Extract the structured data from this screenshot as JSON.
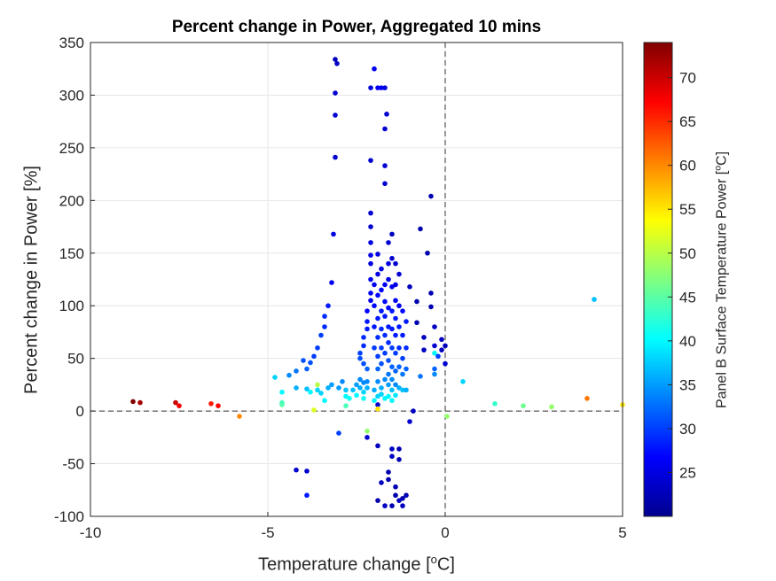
{
  "chart_data": {
    "type": "scatter",
    "title": "Percent change in Power, Aggregated 10 mins",
    "xlabel": "Temperature change [",
    "xlabel_sup": "o",
    "xlabel_suffix": "C]",
    "ylabel": "Percent change in Power [%]",
    "xlim": [
      -10,
      5
    ],
    "ylim": [
      -100,
      350
    ],
    "xticks": [
      -10,
      -5,
      0,
      5
    ],
    "yticks": [
      -100,
      -50,
      0,
      50,
      100,
      150,
      200,
      250,
      300,
      350
    ],
    "grid": true,
    "reference_lines": {
      "x": 0,
      "y": 0,
      "style": "dashed"
    },
    "colorbar": {
      "label": "Panel B Surface Temperature Power [",
      "label_sup": "o",
      "label_suffix": "C]",
      "range": [
        20,
        74
      ],
      "ticks": [
        25,
        30,
        35,
        40,
        45,
        50,
        55,
        60,
        65,
        70
      ],
      "colormap": "jet"
    },
    "points": [
      [
        -8.8,
        9,
        74
      ],
      [
        -8.6,
        8,
        72
      ],
      [
        -7.6,
        8,
        70
      ],
      [
        -7.5,
        5,
        68
      ],
      [
        -6.6,
        7,
        66
      ],
      [
        -6.4,
        5,
        67
      ],
      [
        -5.8,
        -5,
        60
      ],
      [
        -4.8,
        32,
        38
      ],
      [
        -4.6,
        6,
        45
      ],
      [
        -4.6,
        8,
        44
      ],
      [
        -4.6,
        18,
        40
      ],
      [
        -4.4,
        34,
        34
      ],
      [
        -4.2,
        38,
        33
      ],
      [
        -4.2,
        22,
        36
      ],
      [
        -4.0,
        48,
        31
      ],
      [
        -3.9,
        40,
        32
      ],
      [
        -3.8,
        46,
        31
      ],
      [
        -3.7,
        52,
        30
      ],
      [
        -3.9,
        21,
        37
      ],
      [
        -3.8,
        18,
        40
      ],
      [
        -3.7,
        1,
        52
      ],
      [
        -3.6,
        60,
        30
      ],
      [
        -3.5,
        72,
        30
      ],
      [
        -3.4,
        90,
        29
      ],
      [
        -3.4,
        80,
        29
      ],
      [
        -3.3,
        100,
        28
      ],
      [
        -3.2,
        122,
        26
      ],
      [
        -3.15,
        168,
        25
      ],
      [
        -3.1,
        241,
        24
      ],
      [
        -3.1,
        281,
        24
      ],
      [
        -3.1,
        302,
        24
      ],
      [
        -3.1,
        334,
        23
      ],
      [
        -3.05,
        330,
        23
      ],
      [
        -3.6,
        25,
        50
      ],
      [
        -3.6,
        20,
        38
      ],
      [
        -3.5,
        17,
        38
      ],
      [
        -3.4,
        10,
        40
      ],
      [
        -3.3,
        22,
        36
      ],
      [
        -3.2,
        25,
        35
      ],
      [
        -3.0,
        22,
        35
      ],
      [
        -3.0,
        -21,
        30
      ],
      [
        -2.9,
        28,
        34
      ],
      [
        -2.8,
        20,
        37
      ],
      [
        -2.8,
        14,
        40
      ],
      [
        -2.8,
        5,
        44
      ],
      [
        -2.7,
        12,
        41
      ],
      [
        -2.6,
        20,
        37
      ],
      [
        -2.5,
        25,
        35
      ],
      [
        -2.5,
        15,
        40
      ],
      [
        -2.4,
        22,
        36
      ],
      [
        -2.4,
        30,
        34
      ],
      [
        -2.3,
        27,
        34
      ],
      [
        -2.3,
        12,
        41
      ],
      [
        -2.3,
        18,
        38
      ],
      [
        -2.2,
        28,
        34
      ],
      [
        -2.2,
        22,
        36
      ],
      [
        -2.2,
        -19,
        48
      ],
      [
        -2.2,
        40,
        32
      ],
      [
        -2.3,
        45,
        31
      ],
      [
        -2.4,
        50,
        31
      ],
      [
        -2.4,
        55,
        30
      ],
      [
        -2.3,
        62,
        29
      ],
      [
        -2.3,
        70,
        29
      ],
      [
        -2.2,
        78,
        28
      ],
      [
        -2.2,
        85,
        28
      ],
      [
        -2.2,
        95,
        27
      ],
      [
        -2.1,
        105,
        26
      ],
      [
        -2.1,
        112,
        26
      ],
      [
        -2.1,
        125,
        26
      ],
      [
        -2.1,
        140,
        25
      ],
      [
        -2.1,
        148,
        25
      ],
      [
        -2.1,
        160,
        25
      ],
      [
        -2.1,
        175,
        24
      ],
      [
        -2.1,
        188,
        24
      ],
      [
        -2.1,
        238,
        24
      ],
      [
        -2.1,
        307,
        25
      ],
      [
        -2.0,
        325,
        26
      ],
      [
        -1.9,
        307,
        26
      ],
      [
        -1.8,
        307,
        26
      ],
      [
        -2.0,
        60,
        30
      ],
      [
        -2.0,
        80,
        28
      ],
      [
        -2.0,
        100,
        27
      ],
      [
        -2.0,
        120,
        26
      ],
      [
        -2.0,
        20,
        36
      ],
      [
        -2.0,
        10,
        40
      ],
      [
        -1.9,
        40,
        32
      ],
      [
        -1.9,
        52,
        30
      ],
      [
        -1.9,
        70,
        29
      ],
      [
        -1.9,
        88,
        28
      ],
      [
        -1.9,
        110,
        27
      ],
      [
        -1.9,
        130,
        25
      ],
      [
        -1.9,
        149,
        25
      ],
      [
        -1.9,
        28,
        34
      ],
      [
        -1.9,
        14,
        38
      ],
      [
        -1.9,
        6,
        24
      ],
      [
        -1.9,
        2,
        55
      ],
      [
        -1.9,
        -33,
        23
      ],
      [
        -1.8,
        -68,
        23
      ],
      [
        -1.8,
        45,
        31
      ],
      [
        -1.8,
        60,
        30
      ],
      [
        -1.8,
        78,
        29
      ],
      [
        -1.8,
        95,
        28
      ],
      [
        -1.8,
        115,
        27
      ],
      [
        -1.8,
        135,
        25
      ],
      [
        -1.8,
        22,
        36
      ],
      [
        -1.8,
        16,
        38
      ],
      [
        -1.7,
        55,
        30
      ],
      [
        -1.7,
        72,
        29
      ],
      [
        -1.7,
        90,
        28
      ],
      [
        -1.7,
        104,
        27
      ],
      [
        -1.7,
        120,
        26
      ],
      [
        -1.7,
        30,
        34
      ],
      [
        -1.7,
        12,
        40
      ],
      [
        -1.7,
        233,
        24
      ],
      [
        -1.7,
        216,
        24
      ],
      [
        -1.7,
        268,
        24
      ],
      [
        -1.65,
        282,
        24
      ],
      [
        -1.7,
        307,
        25
      ],
      [
        -1.6,
        160,
        24
      ],
      [
        -1.6,
        140,
        25
      ],
      [
        -1.6,
        125,
        25
      ],
      [
        -1.6,
        98,
        27
      ],
      [
        -1.6,
        80,
        28
      ],
      [
        -1.6,
        65,
        29
      ],
      [
        -1.6,
        48,
        31
      ],
      [
        -1.6,
        35,
        33
      ],
      [
        -1.6,
        25,
        35
      ],
      [
        -1.6,
        14,
        40
      ],
      [
        -1.6,
        -58,
        22
      ],
      [
        -1.6,
        -65,
        22
      ],
      [
        -1.5,
        168,
        23
      ],
      [
        -1.5,
        145,
        24
      ],
      [
        -1.5,
        118,
        26
      ],
      [
        -1.5,
        95,
        28
      ],
      [
        -1.5,
        78,
        28
      ],
      [
        -1.5,
        60,
        30
      ],
      [
        -1.5,
        42,
        32
      ],
      [
        -1.5,
        30,
        34
      ],
      [
        -1.5,
        20,
        37
      ],
      [
        -1.5,
        10,
        40
      ],
      [
        -1.5,
        -36,
        23
      ],
      [
        -1.5,
        -43,
        23
      ],
      [
        -1.4,
        140,
        24
      ],
      [
        -1.4,
        120,
        25
      ],
      [
        -1.4,
        105,
        26
      ],
      [
        -1.4,
        88,
        28
      ],
      [
        -1.4,
        72,
        28
      ],
      [
        -1.4,
        55,
        30
      ],
      [
        -1.4,
        38,
        32
      ],
      [
        -1.4,
        25,
        34
      ],
      [
        -1.4,
        15,
        39
      ],
      [
        -1.4,
        -72,
        22
      ],
      [
        -1.4,
        -80,
        22
      ],
      [
        -1.3,
        130,
        24
      ],
      [
        -1.3,
        100,
        26
      ],
      [
        -1.3,
        80,
        28
      ],
      [
        -1.3,
        60,
        29
      ],
      [
        -1.3,
        42,
        32
      ],
      [
        -1.3,
        22,
        36
      ],
      [
        -1.3,
        -36,
        22
      ],
      [
        -1.3,
        -46,
        22
      ],
      [
        -1.3,
        -85,
        23
      ],
      [
        -1.2,
        95,
        27
      ],
      [
        -1.2,
        72,
        28
      ],
      [
        -1.2,
        50,
        30
      ],
      [
        -1.2,
        35,
        33
      ],
      [
        -1.2,
        20,
        37
      ],
      [
        -1.2,
        -83,
        22
      ],
      [
        -1.1,
        85,
        28
      ],
      [
        -1.1,
        60,
        29
      ],
      [
        -1.1,
        40,
        32
      ],
      [
        -1.1,
        20,
        36
      ],
      [
        -1.0,
        -10,
        24
      ],
      [
        -2.2,
        -25,
        24
      ],
      [
        -1.7,
        -90,
        23
      ],
      [
        -1.5,
        -90,
        22
      ],
      [
        -1.9,
        -85,
        22
      ],
      [
        -1.2,
        -90,
        23
      ],
      [
        -1.1,
        -80,
        22
      ],
      [
        -4.2,
        -56,
        24
      ],
      [
        -3.9,
        -57,
        24
      ],
      [
        -3.9,
        -80,
        28
      ],
      [
        -1.0,
        118,
        23
      ],
      [
        -0.9,
        0,
        23
      ],
      [
        -0.8,
        104,
        22
      ],
      [
        -0.8,
        84,
        22
      ],
      [
        -0.7,
        173,
        22
      ],
      [
        -0.6,
        70,
        23
      ],
      [
        -0.6,
        58,
        23
      ],
      [
        -0.5,
        150,
        22
      ],
      [
        -0.4,
        204,
        22
      ],
      [
        -0.4,
        112,
        22
      ],
      [
        -0.4,
        99,
        22
      ],
      [
        -0.3,
        80,
        23
      ],
      [
        -0.3,
        62,
        24
      ],
      [
        -0.3,
        55,
        40
      ],
      [
        -0.3,
        40,
        32
      ],
      [
        -0.3,
        35,
        34
      ],
      [
        -0.2,
        52,
        30
      ],
      [
        -0.1,
        68,
        23
      ],
      [
        -0.1,
        58,
        23
      ],
      [
        0,
        45,
        24
      ],
      [
        0,
        62,
        23
      ],
      [
        -0.7,
        33,
        33
      ],
      [
        0.5,
        28,
        38
      ],
      [
        0.05,
        -5,
        48
      ],
      [
        1.4,
        7,
        43
      ],
      [
        2.2,
        5,
        46
      ],
      [
        3.0,
        4,
        48
      ],
      [
        4.0,
        12,
        61
      ],
      [
        4.2,
        106,
        37
      ],
      [
        5.0,
        6,
        55
      ]
    ]
  }
}
